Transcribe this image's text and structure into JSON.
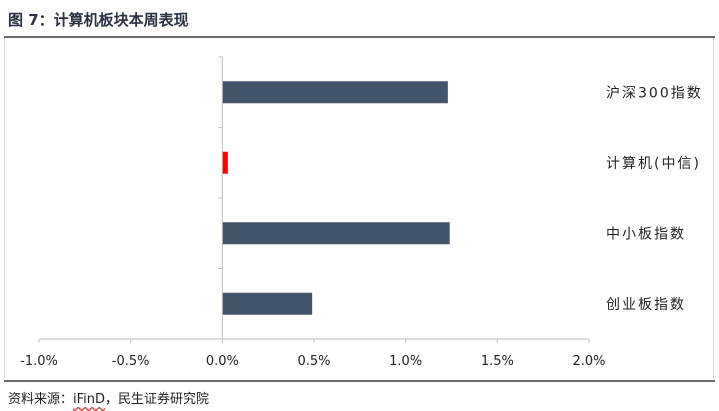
{
  "header": {
    "title": "图 7：计算机板块本周表现"
  },
  "source": {
    "prefix": "资料来源：",
    "vendor": "iFinD",
    "suffix": "，民生证券研究院"
  },
  "chart_data": {
    "type": "bar",
    "orientation": "horizontal",
    "title": "图 7：计算机板块本周表现",
    "xlabel": "",
    "ylabel": "",
    "categories": [
      "沪深300指数",
      "计算机(中信)",
      "中小板指数",
      "创业板指数"
    ],
    "values": [
      1.23,
      0.03,
      1.24,
      0.49
    ],
    "value_unit": "%",
    "xlim": [
      -1.0,
      2.0
    ],
    "xticks": [
      -1.0,
      -0.5,
      0.0,
      0.5,
      1.0,
      1.5,
      2.0
    ],
    "xtick_labels": [
      "-1.0%",
      "-0.5%",
      "0.0%",
      "0.5%",
      "1.0%",
      "1.5%",
      "2.0%"
    ],
    "bar_colors": [
      "#44546a",
      "#ff0000",
      "#44546a",
      "#44546a"
    ],
    "grid": false,
    "legend": "none",
    "category_label_position": "right"
  }
}
